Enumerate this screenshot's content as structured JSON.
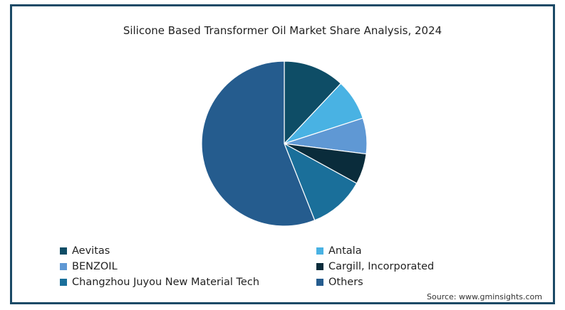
{
  "chart_data": {
    "type": "pie",
    "title": "Silicone Based Transformer Oil Market Share Analysis, 2024",
    "slices": [
      {
        "name": "Aevitas",
        "value": 12,
        "color": "#0e4d66"
      },
      {
        "name": "Antala",
        "value": 8,
        "color": "#49b2e3"
      },
      {
        "name": "BENZOIL",
        "value": 7,
        "color": "#5f98d4"
      },
      {
        "name": "Cargill, Incorporated",
        "value": 6,
        "color": "#0a2c3b"
      },
      {
        "name": "Changzhou Juyou New Material Tech",
        "value": 11,
        "color": "#1a6f9a"
      },
      {
        "name": "Others",
        "value": 56,
        "color": "#255c8e"
      }
    ],
    "legend_placement": "bottom"
  },
  "source": "Source: www.gminsights.com"
}
